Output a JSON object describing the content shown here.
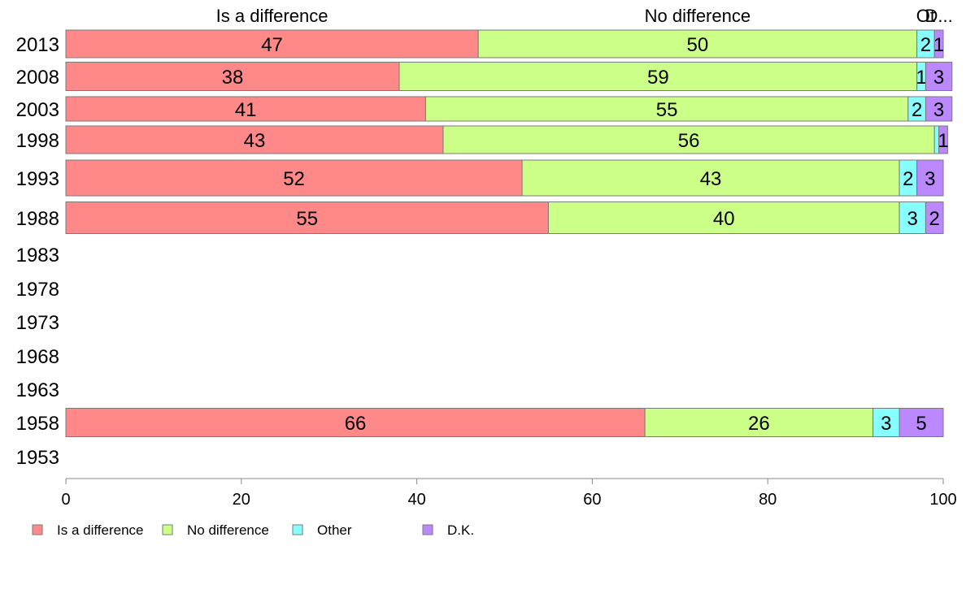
{
  "chart_data": {
    "type": "bar",
    "orientation": "horizontal",
    "stacked": true,
    "categories": [
      "2013",
      "2008",
      "2003",
      "1998",
      "1993",
      "1988",
      "1983",
      "1978",
      "1973",
      "1968",
      "1963",
      "1958",
      "1953"
    ],
    "series": [
      {
        "name": "Is a difference",
        "color": "#ff8888",
        "values": [
          47,
          38,
          41,
          43,
          52,
          55,
          null,
          null,
          null,
          null,
          null,
          66,
          null
        ]
      },
      {
        "name": "No difference",
        "color": "#ccff88",
        "values": [
          50,
          59,
          55,
          56,
          43,
          40,
          null,
          null,
          null,
          null,
          null,
          26,
          null
        ]
      },
      {
        "name": "Other",
        "color": "#88ffff",
        "values": [
          2,
          1,
          2,
          0.5,
          2,
          3,
          null,
          null,
          null,
          null,
          null,
          3,
          null
        ]
      },
      {
        "name": "D.K.",
        "color": "#bb88ff",
        "values": [
          1,
          3,
          3,
          1,
          3,
          2,
          null,
          null,
          null,
          null,
          null,
          5,
          null
        ]
      }
    ],
    "segment_labels": [
      [
        "47",
        "50",
        "2",
        "1"
      ],
      [
        "38",
        "59",
        "1",
        "3"
      ],
      [
        "41",
        "55",
        "2",
        "3"
      ],
      [
        "43",
        "56",
        "",
        "1"
      ],
      [
        "52",
        "43",
        "2",
        "3"
      ],
      [
        "55",
        "40",
        "3",
        "2"
      ],
      [],
      [],
      [],
      [],
      [],
      [
        "66",
        "26",
        "3",
        "5"
      ],
      []
    ],
    "top_labels": [
      "Is a difference",
      "No difference",
      "Ot",
      "D..."
    ],
    "xlim": [
      0,
      100
    ],
    "xticks": [
      0,
      20,
      40,
      60,
      80,
      100
    ],
    "grid": false,
    "legend_position": "bottom-left"
  }
}
